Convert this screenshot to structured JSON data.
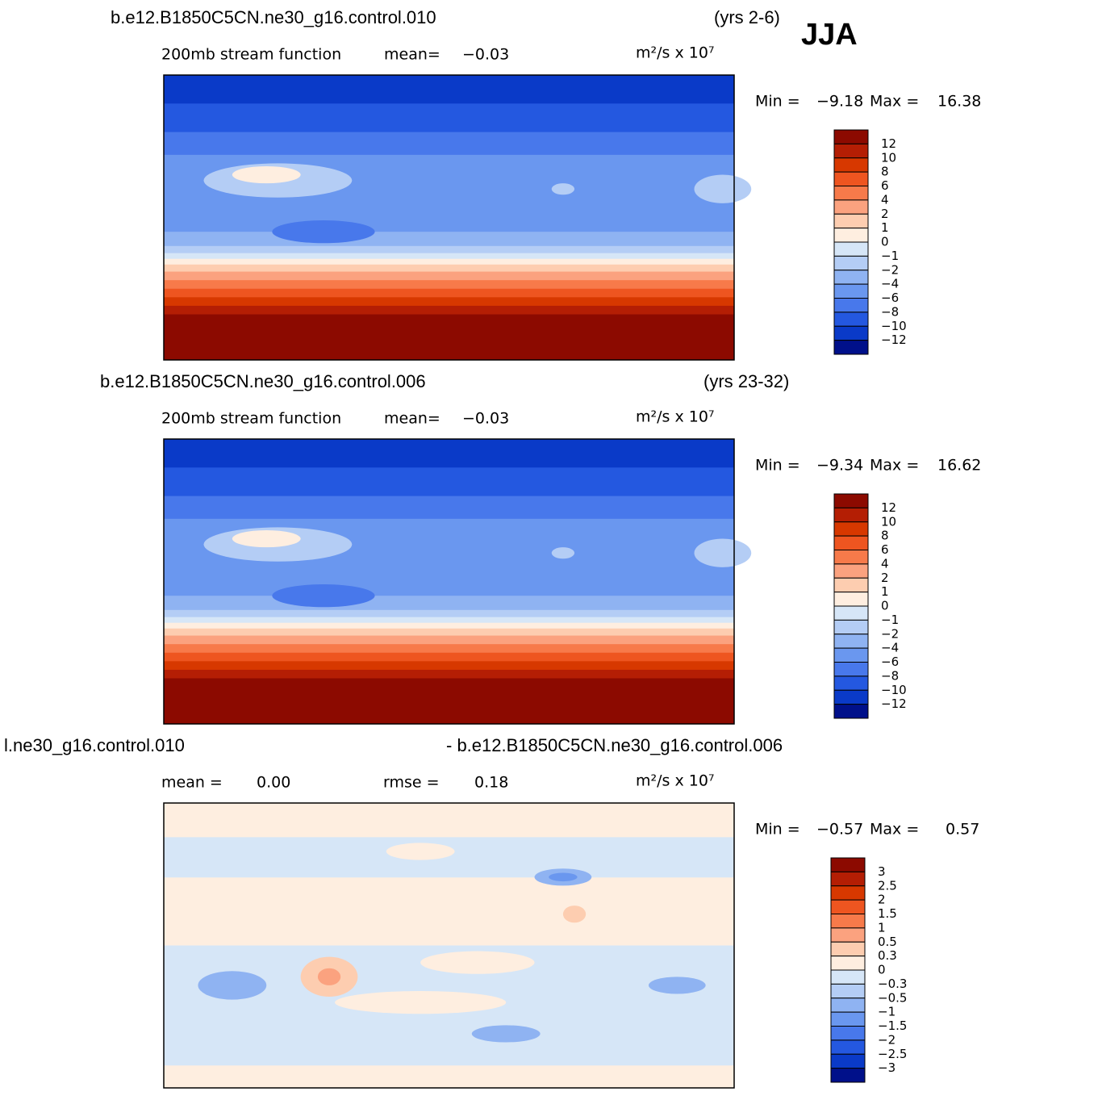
{
  "header": {
    "season": "JJA"
  },
  "panels": [
    {
      "case": "b.e12.B1850C5CN.ne30_g16.control.010",
      "years": "(yrs 2-6)",
      "field": "200mb stream function",
      "mean_label": "mean=",
      "mean": "−0.03",
      "units": "m²/s x 10⁷",
      "min_label": "Min =",
      "min": "−9.18",
      "max_label": "Max =",
      "max": "16.38",
      "colorbar": {
        "labels": [
          "12",
          "10",
          "8",
          "6",
          "4",
          "2",
          "1",
          "0",
          "−1",
          "−2",
          "−4",
          "−6",
          "−8",
          "−10",
          "−12"
        ],
        "colors": [
          "#8c0a00",
          "#b41e04",
          "#d73800",
          "#ee5520",
          "#f77a4a",
          "#fba27f",
          "#fdcdb0",
          "#feeee0",
          "#d6e6f7",
          "#b4cdf5",
          "#8fb3f2",
          "#6a97ef",
          "#4878eb",
          "#2458e0",
          "#0a3ac8",
          "#00108a"
        ]
      }
    },
    {
      "case": "b.e12.B1850C5CN.ne30_g16.control.006",
      "years": "(yrs 23-32)",
      "field": "200mb stream function",
      "mean_label": "mean=",
      "mean": "−0.03",
      "units": "m²/s x 10⁷",
      "min_label": "Min =",
      "min": "−9.34",
      "max_label": "Max =",
      "max": "16.62",
      "colorbar": {
        "labels": [
          "12",
          "10",
          "8",
          "6",
          "4",
          "2",
          "1",
          "0",
          "−1",
          "−2",
          "−4",
          "−6",
          "−8",
          "−10",
          "−12"
        ],
        "colors": [
          "#8c0a00",
          "#b41e04",
          "#d73800",
          "#ee5520",
          "#f77a4a",
          "#fba27f",
          "#fdcdb0",
          "#feeee0",
          "#d6e6f7",
          "#b4cdf5",
          "#8fb3f2",
          "#6a97ef",
          "#4878eb",
          "#2458e0",
          "#0a3ac8",
          "#00108a"
        ]
      }
    },
    {
      "case": "l.ne30_g16.control.010",
      "case2": "- b.e12.B1850C5CN.ne30_g16.control.006",
      "mean_label": "mean =",
      "mean": "0.00",
      "rmse_label": "rmse =",
      "rmse": "0.18",
      "units": "m²/s x 10⁷",
      "min_label": "Min =",
      "min": "−0.57",
      "max_label": "Max =",
      "max": "0.57",
      "colorbar": {
        "labels": [
          "3",
          "2.5",
          "2",
          "1.5",
          "1",
          "0.5",
          "0.3",
          "0",
          "−0.3",
          "−0.5",
          "−1",
          "−1.5",
          "−2",
          "−2.5",
          "−3"
        ],
        "colors": [
          "#8c0a00",
          "#b41e04",
          "#d73800",
          "#ee5520",
          "#f77a4a",
          "#fba27f",
          "#fdcdb0",
          "#feeee0",
          "#d6e6f7",
          "#b4cdf5",
          "#8fb3f2",
          "#6a97ef",
          "#4878eb",
          "#2458e0",
          "#0a3ac8",
          "#00108a"
        ]
      }
    }
  ]
}
